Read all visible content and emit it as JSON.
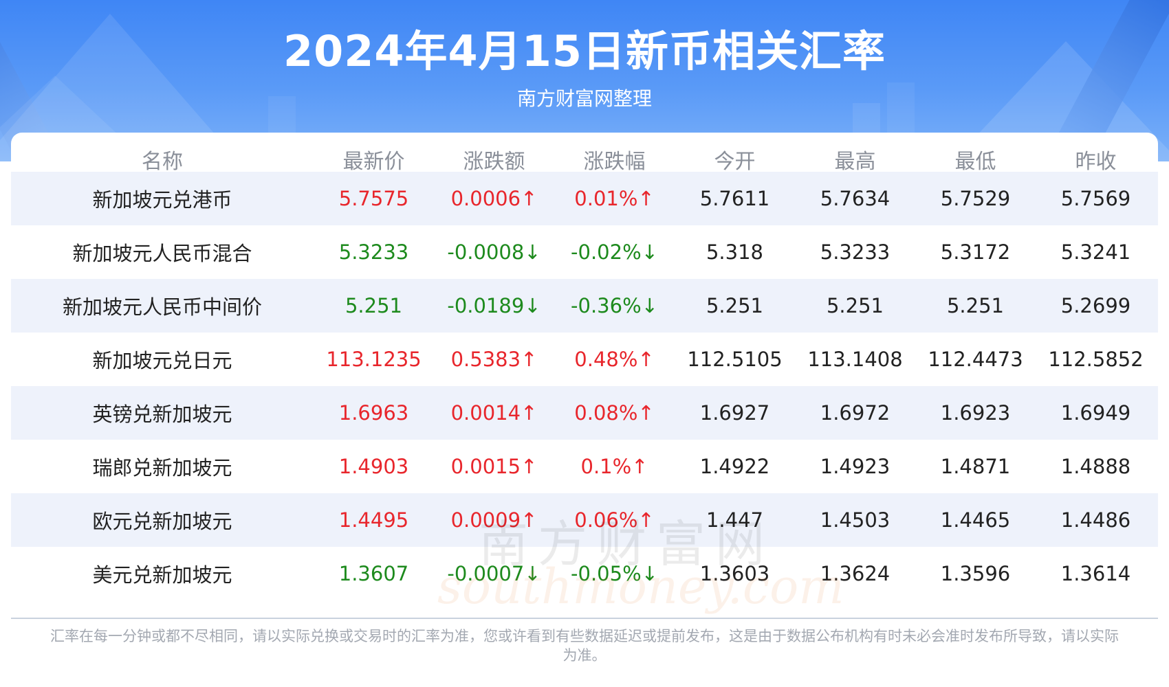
{
  "title": "2024年4月15日新币相关汇率",
  "subtitle": "南方财富网整理",
  "colors": {
    "up": "#e8262c",
    "down": "#1d8a1d",
    "header_blue": "#3f86f5"
  },
  "columns": [
    "名称",
    "最新价",
    "涨跌额",
    "涨跌幅",
    "今开",
    "最高",
    "最低",
    "昨收"
  ],
  "rows": [
    {
      "name": "新加坡元兑港币",
      "latest": "5.7575",
      "change": "0.0006↑",
      "pct": "0.01%↑",
      "open": "5.7611",
      "high": "5.7634",
      "low": "5.7529",
      "prev": "5.7569",
      "trend": "up"
    },
    {
      "name": "新加坡元人民币混合",
      "latest": "5.3233",
      "change": "-0.0008↓",
      "pct": "-0.02%↓",
      "open": "5.318",
      "high": "5.3233",
      "low": "5.3172",
      "prev": "5.3241",
      "trend": "down"
    },
    {
      "name": "新加坡元人民币中间价",
      "latest": "5.251",
      "change": "-0.0189↓",
      "pct": "-0.36%↓",
      "open": "5.251",
      "high": "5.251",
      "low": "5.251",
      "prev": "5.2699",
      "trend": "down"
    },
    {
      "name": "新加坡元兑日元",
      "latest": "113.1235",
      "change": "0.5383↑",
      "pct": "0.48%↑",
      "open": "112.5105",
      "high": "113.1408",
      "low": "112.4473",
      "prev": "112.5852",
      "trend": "up"
    },
    {
      "name": "英镑兑新加坡元",
      "latest": "1.6963",
      "change": "0.0014↑",
      "pct": "0.08%↑",
      "open": "1.6927",
      "high": "1.6972",
      "low": "1.6923",
      "prev": "1.6949",
      "trend": "up"
    },
    {
      "name": "瑞郎兑新加坡元",
      "latest": "1.4903",
      "change": "0.0015↑",
      "pct": "0.1%↑",
      "open": "1.4922",
      "high": "1.4923",
      "low": "1.4871",
      "prev": "1.4888",
      "trend": "up"
    },
    {
      "name": "欧元兑新加坡元",
      "latest": "1.4495",
      "change": "0.0009↑",
      "pct": "0.06%↑",
      "open": "1.447",
      "high": "1.4503",
      "low": "1.4465",
      "prev": "1.4486",
      "trend": "up"
    },
    {
      "name": "美元兑新加坡元",
      "latest": "1.3607",
      "change": "-0.0007↓",
      "pct": "-0.05%↓",
      "open": "1.3603",
      "high": "1.3624",
      "low": "1.3596",
      "prev": "1.3614",
      "trend": "down"
    }
  ],
  "watermark": {
    "cn": "南方财富网",
    "en": "southmoney.com"
  },
  "footnote": "汇率在每一分钟或都不尽相同，请以实际兑换或交易时的汇率为准，您或许看到有些数据延迟或提前发布，这是由于数据公布机构有时未必会准时发布所导致，请以实际为准。"
}
